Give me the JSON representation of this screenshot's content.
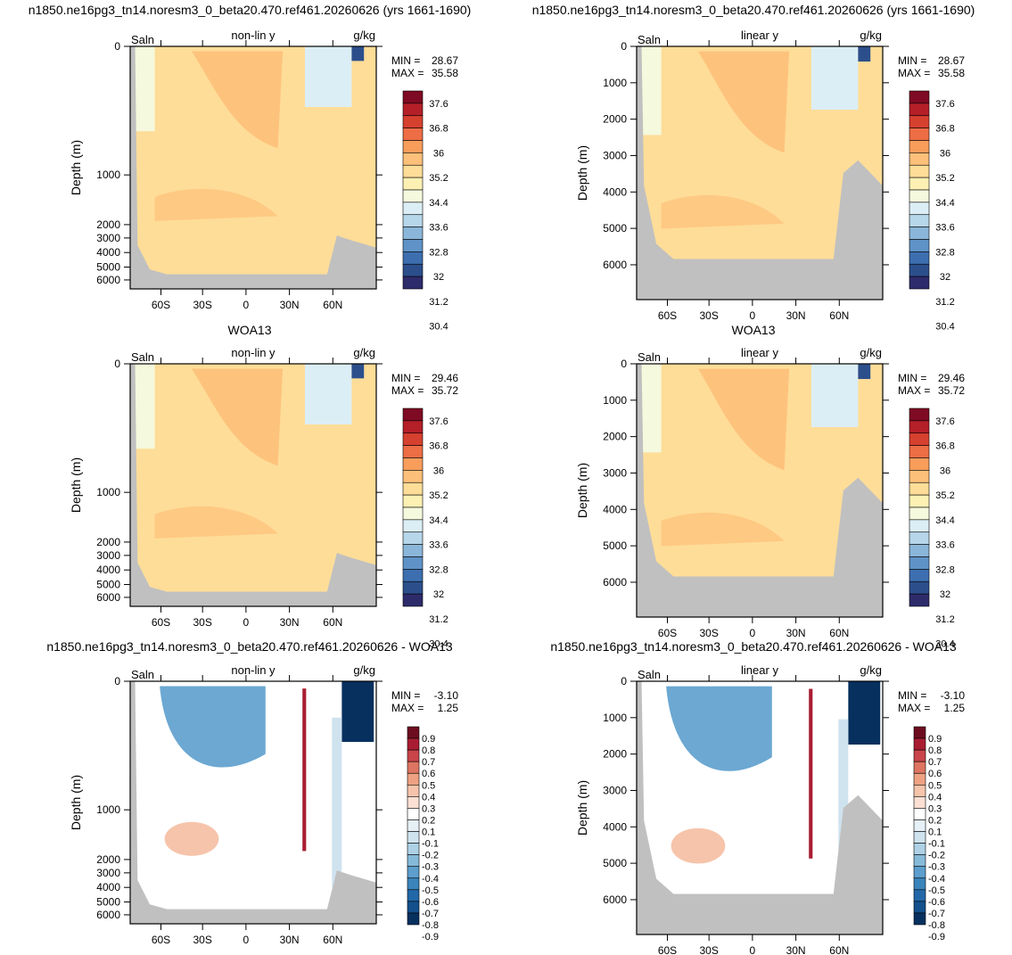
{
  "colors": {
    "land": "#c0c0c0",
    "salt_levels": [
      "#2e2b6b",
      "#2c4f8c",
      "#3d6fb0",
      "#5f93c7",
      "#8ab6d9",
      "#b6d6e9",
      "#dceef5",
      "#f5f9dd",
      "#fdf0b3",
      "#fedd98",
      "#fdc07a",
      "#f99d5b",
      "#ed6d45",
      "#d6402f",
      "#b41f28",
      "#7f0a23"
    ],
    "diff_levels": [
      "#07305f",
      "#13508c",
      "#2268a9",
      "#3a84bc",
      "#5c9ecd",
      "#86bad9",
      "#aed1e5",
      "#cfe3ef",
      "#e6f0f7",
      "#ffffff",
      "#fbe0d3",
      "#f6c4ab",
      "#eea283",
      "#de7562",
      "#c9454a",
      "#a91d33",
      "#6e0c1f"
    ]
  },
  "panels": [
    {
      "id": "model-nonlin",
      "title": "n1850.ne16pg3_tn14.noresm3_0_beta20.470.ref461.20260626 (yrs 1661-1690)",
      "left_label": "Saln",
      "center_label": "non-lin y",
      "right_label": "g/kg",
      "ylabel": "Depth (m)",
      "y_ticks": [
        "0",
        "1000",
        "2000",
        "3000",
        "4000",
        "5000",
        "6000"
      ],
      "x_ticks": [
        "60S",
        "30S",
        "0",
        "30N",
        "60N"
      ],
      "min_label": "MIN =",
      "min_value": "28.67",
      "max_label": "MAX =",
      "max_value": "35.58",
      "colorbar": "salt",
      "background_level": 9
    },
    {
      "id": "model-lin",
      "title": "n1850.ne16pg3_tn14.noresm3_0_beta20.470.ref461.20260626 (yrs 1661-1690)",
      "left_label": "Saln",
      "center_label": "linear y",
      "right_label": "g/kg",
      "ylabel": "Depth (m)",
      "y_ticks": [
        "0",
        "1000",
        "2000",
        "3000",
        "4000",
        "5000",
        "6000"
      ],
      "x_ticks": [
        "60S",
        "30S",
        "0",
        "30N",
        "60N"
      ],
      "min_label": "MIN =",
      "min_value": "28.67",
      "max_label": "MAX =",
      "max_value": "35.58",
      "colorbar": "salt",
      "background_level": 9
    },
    {
      "id": "obs-nonlin",
      "title": "WOA13",
      "left_label": "Saln",
      "center_label": "non-lin y",
      "right_label": "g/kg",
      "ylabel": "Depth (m)",
      "y_ticks": [
        "0",
        "1000",
        "2000",
        "3000",
        "4000",
        "5000",
        "6000"
      ],
      "x_ticks": [
        "60S",
        "30S",
        "0",
        "30N",
        "60N"
      ],
      "min_label": "MIN =",
      "min_value": "29.46",
      "max_label": "MAX =",
      "max_value": "35.72",
      "colorbar": "salt",
      "background_level": 9
    },
    {
      "id": "obs-lin",
      "title": "WOA13",
      "left_label": "Saln",
      "center_label": "linear y",
      "right_label": "g/kg",
      "ylabel": "Depth (m)",
      "y_ticks": [
        "0",
        "1000",
        "2000",
        "3000",
        "4000",
        "5000",
        "6000"
      ],
      "x_ticks": [
        "60S",
        "30S",
        "0",
        "30N",
        "60N"
      ],
      "min_label": "MIN =",
      "min_value": "29.46",
      "max_label": "MAX =",
      "max_value": "35.72",
      "colorbar": "salt",
      "background_level": 9
    },
    {
      "id": "diff-nonlin",
      "title": "n1850.ne16pg3_tn14.noresm3_0_beta20.470.ref461.20260626 - WOA13",
      "left_label": "Saln",
      "center_label": "non-lin y",
      "right_label": "g/kg",
      "ylabel": "Depth (m)",
      "y_ticks": [
        "0",
        "1000",
        "2000",
        "3000",
        "4000",
        "5000",
        "6000"
      ],
      "x_ticks": [
        "60S",
        "30S",
        "0",
        "30N",
        "60N"
      ],
      "min_label": "MIN =",
      "min_value": "-3.10",
      "max_label": "MAX =",
      "max_value": "1.25",
      "colorbar": "diff",
      "background_level": 9
    },
    {
      "id": "diff-lin",
      "title": "n1850.ne16pg3_tn14.noresm3_0_beta20.470.ref461.20260626 - WOA13",
      "left_label": "Saln",
      "center_label": "linear y",
      "right_label": "g/kg",
      "ylabel": "Depth (m)",
      "y_ticks": [
        "0",
        "1000",
        "2000",
        "3000",
        "4000",
        "5000",
        "6000"
      ],
      "x_ticks": [
        "60S",
        "30S",
        "0",
        "30N",
        "60N"
      ],
      "min_label": "MIN =",
      "min_value": "-3.10",
      "max_label": "MAX =",
      "max_value": "1.25",
      "colorbar": "diff",
      "background_level": 9
    }
  ],
  "colorbars": {
    "salt": {
      "labels": [
        "37.6",
        "36.8",
        "36",
        "35.2",
        "34.4",
        "33.6",
        "32.8",
        "32",
        "31.2",
        "30.4"
      ]
    },
    "diff": {
      "labels": [
        "0.9",
        "0.8",
        "0.7",
        "0.6",
        "0.5",
        "0.4",
        "0.3",
        "0.2",
        "0.1",
        "-0.1",
        "-0.2",
        "-0.3",
        "-0.4",
        "-0.5",
        "-0.6",
        "-0.7",
        "-0.8",
        "-0.9"
      ]
    }
  },
  "chart_data": [
    {
      "type": "heatmap",
      "panel": "model-nonlin",
      "variable": "Saln",
      "units": "g/kg",
      "y_scale": "non-lin y",
      "xlim": [
        "80S",
        "90N"
      ],
      "ylim": [
        0,
        6500
      ],
      "min": 28.67,
      "max": 35.58
    },
    {
      "type": "heatmap",
      "panel": "model-lin",
      "variable": "Saln",
      "units": "g/kg",
      "y_scale": "linear y",
      "xlim": [
        "80S",
        "90N"
      ],
      "ylim": [
        0,
        6800
      ],
      "min": 28.67,
      "max": 35.58
    },
    {
      "type": "heatmap",
      "panel": "obs-nonlin",
      "variable": "Saln",
      "units": "g/kg",
      "y_scale": "non-lin y",
      "xlim": [
        "80S",
        "90N"
      ],
      "ylim": [
        0,
        6500
      ],
      "min": 29.46,
      "max": 35.72
    },
    {
      "type": "heatmap",
      "panel": "obs-lin",
      "variable": "Saln",
      "units": "g/kg",
      "y_scale": "linear y",
      "xlim": [
        "80S",
        "90N"
      ],
      "ylim": [
        0,
        6800
      ],
      "min": 29.46,
      "max": 35.72
    },
    {
      "type": "heatmap",
      "panel": "diff-nonlin",
      "variable": "Saln",
      "units": "g/kg",
      "y_scale": "non-lin y",
      "xlim": [
        "80S",
        "90N"
      ],
      "ylim": [
        0,
        6500
      ],
      "min": -3.1,
      "max": 1.25
    },
    {
      "type": "heatmap",
      "panel": "diff-lin",
      "variable": "Saln",
      "units": "g/kg",
      "y_scale": "linear y",
      "xlim": [
        "80S",
        "90N"
      ],
      "ylim": [
        0,
        6800
      ],
      "min": -3.1,
      "max": 1.25
    }
  ]
}
